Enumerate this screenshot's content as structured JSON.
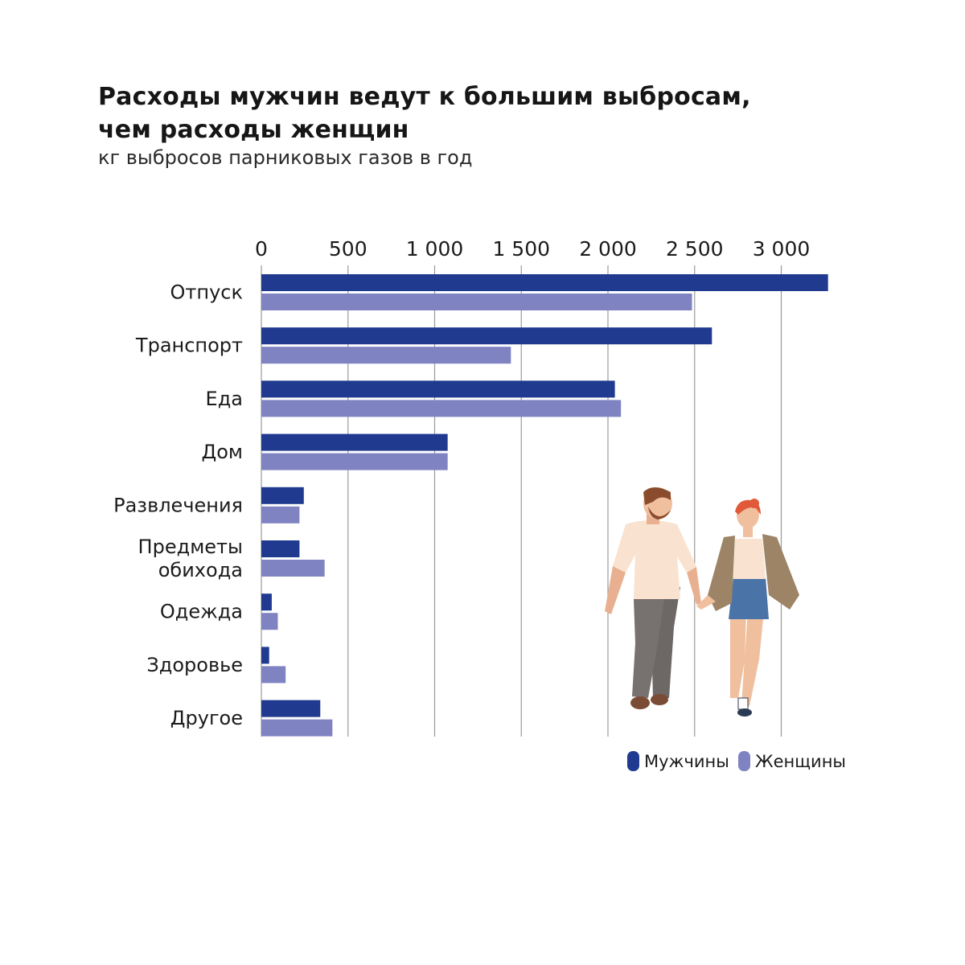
{
  "header": {
    "title_line1": "Расходы мужчин ведут к большим выбросам,",
    "title_line2": "чем расходы женщин",
    "subtitle": "кг выбросов парниковых газов в год"
  },
  "colors": {
    "men": "#1f3a8f",
    "women": "#7f83c2",
    "grid": "#9a9a9a",
    "text": "#1b1b1b"
  },
  "illustration": {
    "name": "walking-couple-illustration"
  },
  "chart_data": {
    "type": "bar",
    "orientation": "horizontal",
    "title": "Расходы мужчин ведут к большим выбросам, чем расходы женщин",
    "subtitle": "кг выбросов парниковых газов в год",
    "xlim": [
      0,
      3300
    ],
    "x_ticks": [
      0,
      500,
      1000,
      1500,
      2000,
      2500,
      3000
    ],
    "x_tick_labels": [
      "0",
      "500",
      "1 000",
      "1 500",
      "2 000",
      "2 500",
      "3 000"
    ],
    "grid": true,
    "legend_position": "bottom-right",
    "categories": [
      [
        "Отпуск"
      ],
      [
        "Транспорт"
      ],
      [
        "Еда"
      ],
      [
        "Дом"
      ],
      [
        "Развлечения"
      ],
      [
        "Предметы",
        "обихода"
      ],
      [
        "Одежда"
      ],
      [
        "Здоровье"
      ],
      [
        "Другое"
      ]
    ],
    "series": [
      {
        "name": "Мужчины",
        "color": "#1f3a8f",
        "values": [
          3270,
          2600,
          2040,
          1075,
          245,
          220,
          60,
          45,
          340
        ]
      },
      {
        "name": "Женщины",
        "color": "#7f83c2",
        "values": [
          2485,
          1440,
          2075,
          1075,
          220,
          365,
          95,
          140,
          410
        ]
      }
    ]
  }
}
